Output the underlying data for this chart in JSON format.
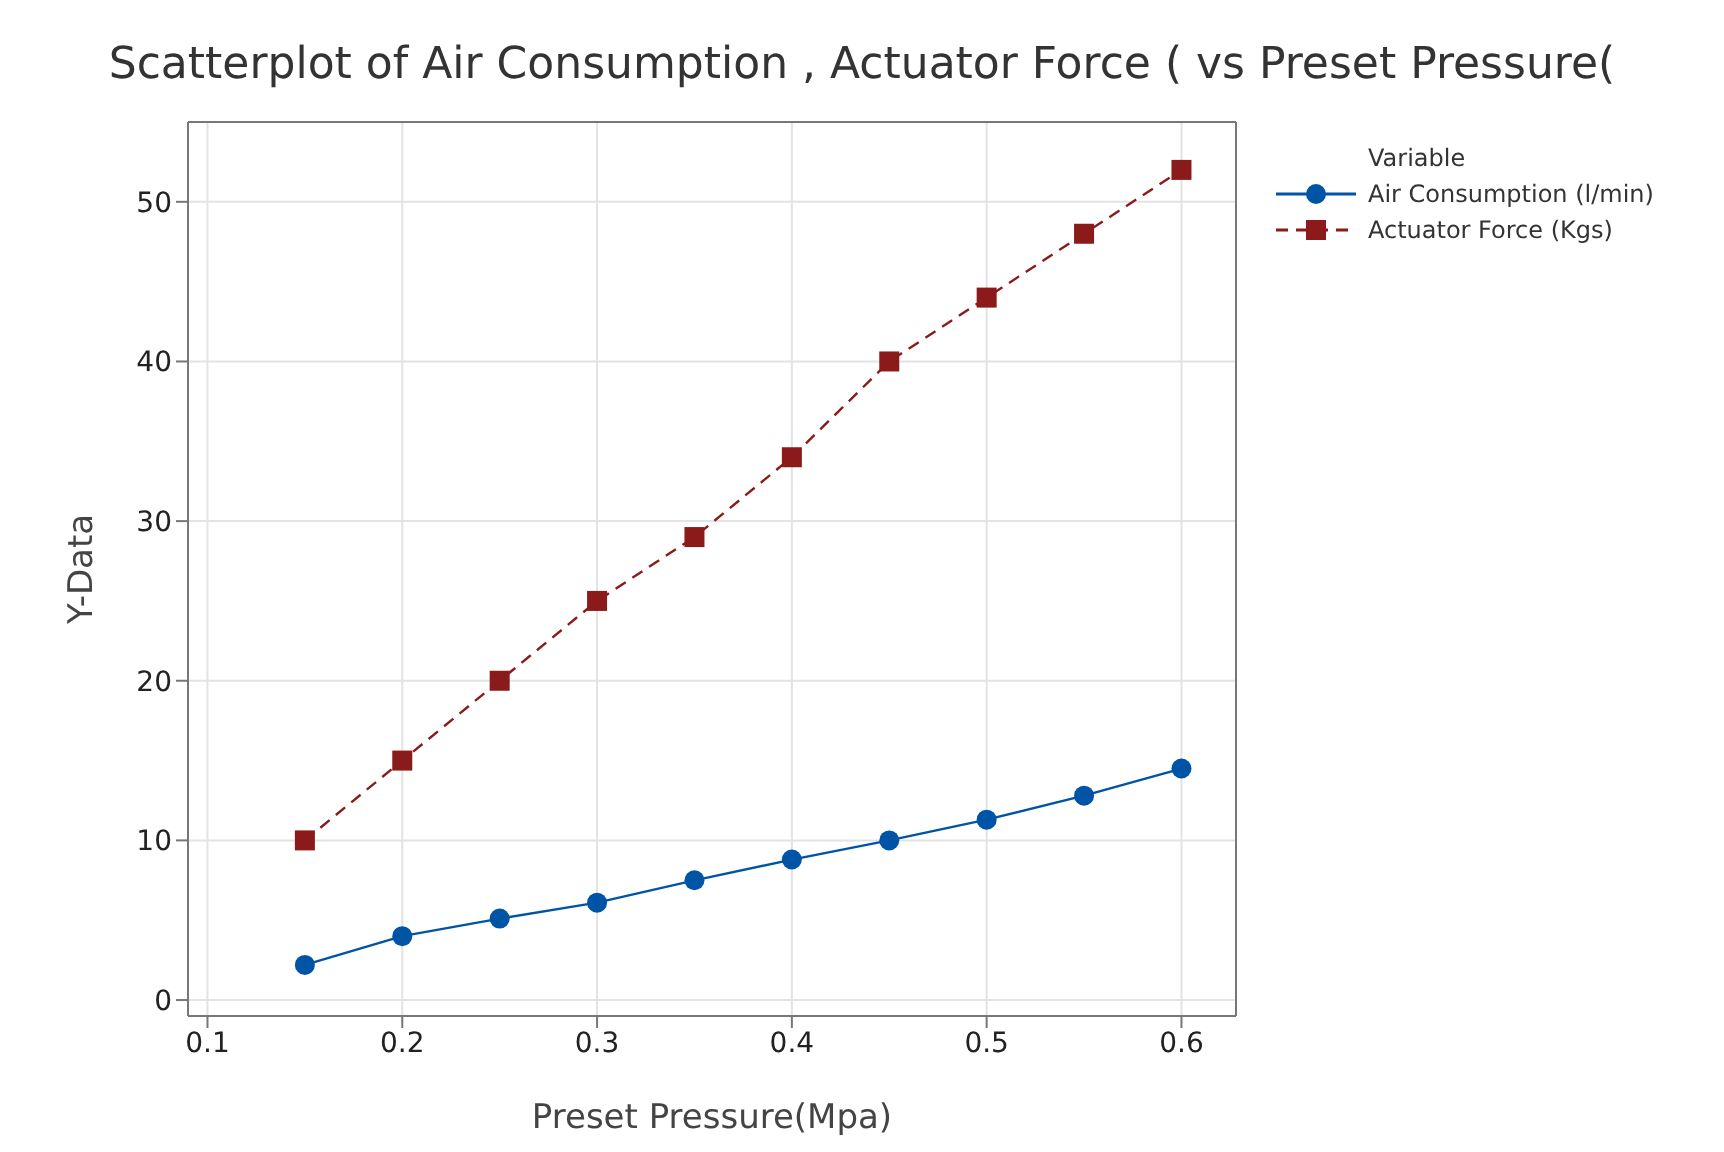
{
  "chart_data": {
    "type": "line",
    "title": "Scatterplot of Air Consumption , Actuator Force ( vs Preset Pressure(",
    "xlabel": "Preset Pressure(Mpa)",
    "ylabel": "Y-Data",
    "legend_title": "Variable",
    "x": [
      0.15,
      0.2,
      0.25,
      0.3,
      0.35,
      0.4,
      0.45,
      0.5,
      0.55,
      0.6
    ],
    "series": [
      {
        "name": "Air Consumption (l/min)",
        "color": "#0054a6",
        "marker": "circle",
        "line_style": "solid",
        "values": [
          2.2,
          4.0,
          5.1,
          6.1,
          7.5,
          8.8,
          10.0,
          11.3,
          12.8,
          14.5
        ]
      },
      {
        "name": "Actuator Force (Kgs)",
        "color": "#8b1a1a",
        "marker": "square",
        "line_style": "dashed",
        "values": [
          10,
          15,
          20,
          25,
          29,
          34,
          40,
          44,
          48,
          52
        ]
      }
    ],
    "xlim": [
      0.09,
      0.628
    ],
    "xticks": [
      0.1,
      0.2,
      0.3,
      0.4,
      0.5,
      0.6
    ],
    "ylim": [
      -1,
      55
    ],
    "yticks": [
      0,
      10,
      20,
      30,
      40,
      50
    ],
    "grid": true,
    "legend": "top right"
  }
}
